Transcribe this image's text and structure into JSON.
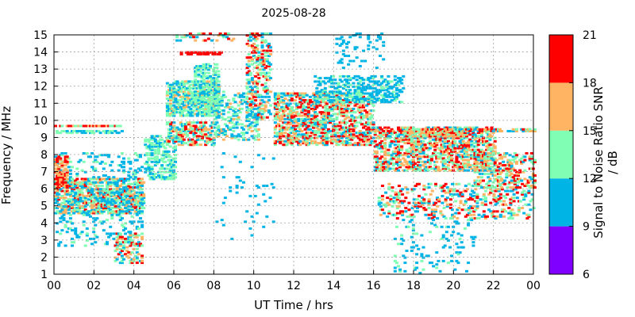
{
  "chart_data": {
    "type": "heatmap",
    "title": "2025-08-28",
    "xlabel": "UT Time / hrs",
    "ylabel": "Frequency / MHz",
    "colorbar_label": "Signal to Noise Ratio SNR / dB",
    "xlim": [
      0,
      24
    ],
    "ylim": [
      1,
      15
    ],
    "x_ticks": [
      "00",
      "02",
      "04",
      "06",
      "08",
      "10",
      "12",
      "14",
      "16",
      "18",
      "20",
      "22",
      "00"
    ],
    "y_ticks": [
      "1",
      "2",
      "3",
      "4",
      "5",
      "6",
      "7",
      "8",
      "9",
      "10",
      "11",
      "12",
      "13",
      "14",
      "15"
    ],
    "grid": true,
    "colorbar": {
      "ticks": [
        "6",
        "9",
        "12",
        "15",
        "18",
        "21"
      ],
      "bins": [
        {
          "range": [
            6,
            9
          ],
          "color": "#8000ff"
        },
        {
          "range": [
            9,
            12
          ],
          "color": "#00b4e6"
        },
        {
          "range": [
            12,
            15
          ],
          "color": "#80ffb4"
        },
        {
          "range": [
            15,
            18
          ],
          "color": "#ffb464"
        },
        {
          "range": [
            18,
            21
          ],
          "color": "#ff0000"
        }
      ]
    },
    "regions": [
      {
        "t": [
          0.0,
          4.5
        ],
        "f": [
          4.5,
          6.5
        ],
        "density": 0.55,
        "snr": [
          10,
          19
        ]
      },
      {
        "t": [
          0.0,
          4.4
        ],
        "f": [
          2.6,
          8.0
        ],
        "density": 0.12,
        "snr": [
          9,
          13
        ]
      },
      {
        "t": [
          0.0,
          3.5
        ],
        "f": [
          9.6,
          9.7
        ],
        "density": 0.75,
        "snr": [
          13,
          21
        ]
      },
      {
        "t": [
          0.0,
          3.5
        ],
        "f": [
          9.2,
          9.3
        ],
        "density": 0.5,
        "snr": [
          10,
          14
        ]
      },
      {
        "t": [
          0.0,
          0.6
        ],
        "f": [
          6.0,
          7.8
        ],
        "density": 0.45,
        "snr": [
          15,
          21
        ]
      },
      {
        "t": [
          3.0,
          4.4
        ],
        "f": [
          1.6,
          3.4
        ],
        "density": 0.3,
        "snr": [
          9,
          21
        ]
      },
      {
        "t": [
          4.5,
          6.0
        ],
        "f": [
          6.5,
          9.0
        ],
        "density": 0.35,
        "snr": [
          10,
          15
        ]
      },
      {
        "t": [
          5.6,
          8.2
        ],
        "f": [
          10.2,
          12.2
        ],
        "density": 0.6,
        "snr": [
          10,
          16
        ]
      },
      {
        "t": [
          5.6,
          8.0
        ],
        "f": [
          8.5,
          9.8
        ],
        "density": 0.5,
        "snr": [
          10,
          20
        ]
      },
      {
        "t": [
          7.0,
          8.2
        ],
        "f": [
          11.0,
          13.2
        ],
        "density": 0.4,
        "snr": [
          10,
          15
        ]
      },
      {
        "t": [
          6.3,
          8.4
        ],
        "f": [
          13.8,
          14.0
        ],
        "density": 0.7,
        "snr": [
          18,
          21
        ]
      },
      {
        "t": [
          6.0,
          9.0
        ],
        "f": [
          14.6,
          15.0
        ],
        "density": 0.2,
        "snr": [
          9,
          21
        ]
      },
      {
        "t": [
          9.6,
          10.8
        ],
        "f": [
          10.0,
          15.0
        ],
        "density": 0.3,
        "snr": [
          9,
          21
        ]
      },
      {
        "t": [
          8.0,
          10.2
        ],
        "f": [
          8.8,
          11.6
        ],
        "density": 0.25,
        "snr": [
          9,
          16
        ]
      },
      {
        "t": [
          11.0,
          16.0
        ],
        "f": [
          8.5,
          11.5
        ],
        "density": 0.45,
        "snr": [
          10,
          21
        ]
      },
      {
        "t": [
          13.0,
          17.5
        ],
        "f": [
          11.0,
          12.5
        ],
        "density": 0.35,
        "snr": [
          9,
          13
        ]
      },
      {
        "t": [
          16.0,
          22.0
        ],
        "f": [
          7.0,
          9.5
        ],
        "density": 0.45,
        "snr": [
          10,
          21
        ]
      },
      {
        "t": [
          17.5,
          20.5
        ],
        "f": [
          9.0,
          9.4
        ],
        "density": 0.65,
        "snr": [
          12,
          21
        ]
      },
      {
        "t": [
          20.0,
          24.0
        ],
        "f": [
          9.3,
          9.5
        ],
        "density": 0.55,
        "snr": [
          10,
          20
        ]
      },
      {
        "t": [
          16.2,
          24.0
        ],
        "f": [
          4.2,
          6.2
        ],
        "density": 0.2,
        "snr": [
          9,
          21
        ]
      },
      {
        "t": [
          17.0,
          21.0
        ],
        "f": [
          1.0,
          4.2
        ],
        "density": 0.08,
        "snr": [
          9,
          13
        ]
      },
      {
        "t": [
          14.0,
          16.5
        ],
        "f": [
          13.0,
          15.0
        ],
        "density": 0.08,
        "snr": [
          9,
          12
        ]
      },
      {
        "t": [
          21.0,
          24.0
        ],
        "f": [
          6.0,
          8.0
        ],
        "density": 0.3,
        "snr": [
          10,
          21
        ]
      },
      {
        "t": [
          8.0,
          11.0
        ],
        "f": [
          3.0,
          8.0
        ],
        "density": 0.02,
        "snr": [
          9,
          12
        ]
      }
    ]
  }
}
